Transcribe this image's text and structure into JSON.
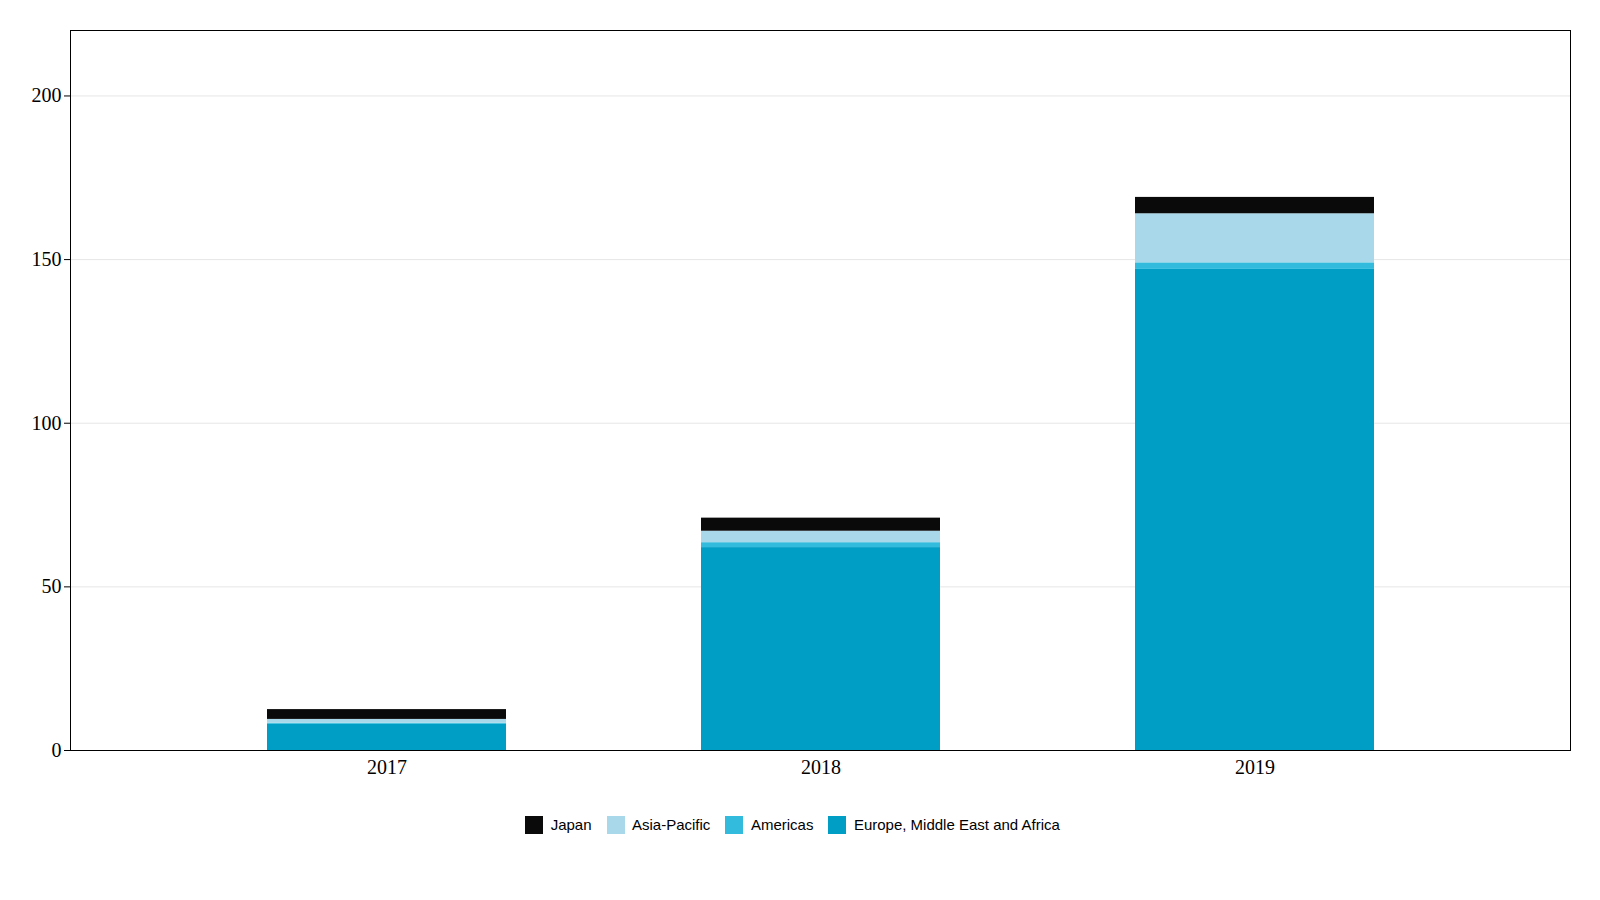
{
  "chart_data": {
    "type": "bar",
    "stacked": true,
    "categories": [
      "2017",
      "2018",
      "2019"
    ],
    "series": [
      {
        "name": "Europe, Middle East and Africa",
        "color": "#009DC4",
        "values": [
          8,
          62,
          147
        ]
      },
      {
        "name": "Americas",
        "color": "#33BBDD",
        "values": [
          0.3,
          1.5,
          2
        ]
      },
      {
        "name": "Asia-Pacific",
        "color": "#A8D8EA",
        "values": [
          1.2,
          3.5,
          15
        ]
      },
      {
        "name": "Japan",
        "color": "#0A0A0A",
        "values": [
          3,
          4,
          5
        ]
      }
    ],
    "ylim": [
      0,
      220
    ],
    "yticks": [
      0,
      50,
      100,
      150,
      200
    ],
    "grid": true,
    "legend": "bottom"
  }
}
